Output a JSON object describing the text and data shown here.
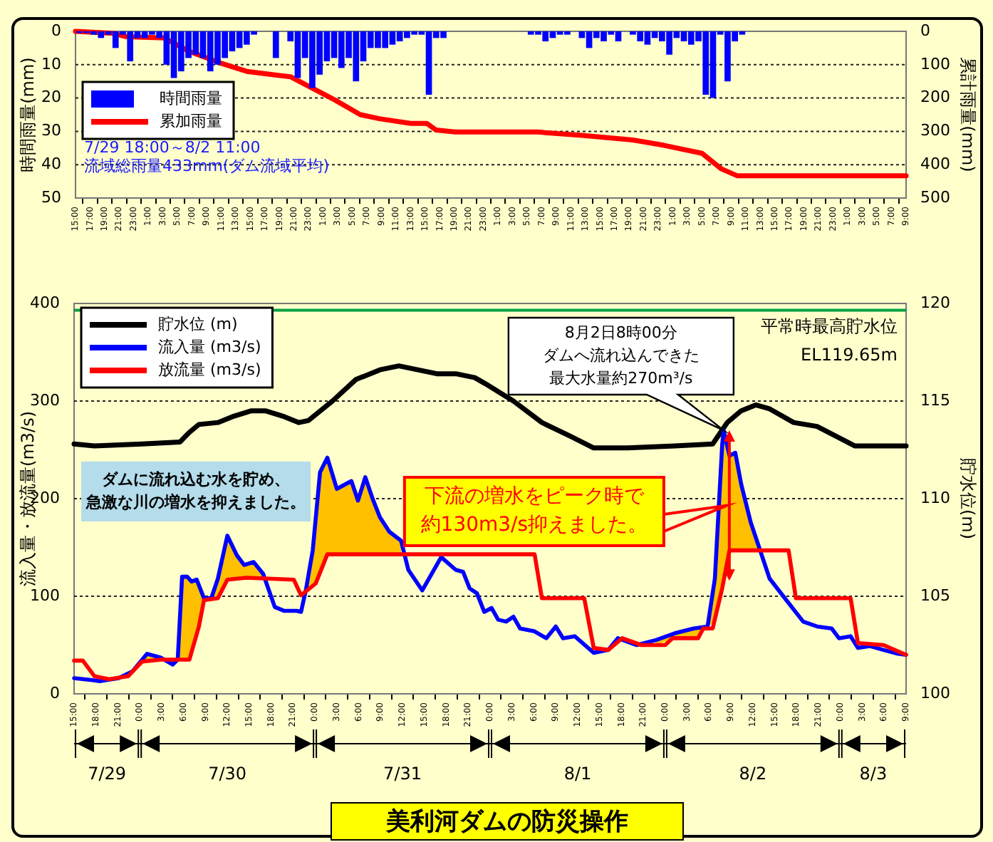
{
  "chart_data": [
    {
      "type": "bar",
      "ylabel": "時間雨量(mm)",
      "y2label": "累計雨量(mm)",
      "xlim": [
        "--07-29T15:00",
        "--08-03T09:00"
      ],
      "xticks": [
        {
          "value": "--07-29T15:00",
          "label": "15:00"
        },
        {
          "value": "--07-29T17:00",
          "label": "17:00"
        },
        {
          "value": "--07-29T19:00",
          "label": "19:00"
        },
        {
          "value": "--07-29T21:00",
          "label": "21:00"
        },
        {
          "value": "--07-29T23:00",
          "label": "23:00"
        },
        {
          "value": "--07-30T01:00",
          "label": "1:00"
        },
        {
          "value": "--07-30T03:00",
          "label": "3:00"
        },
        {
          "value": "--07-30T05:00",
          "label": "5:00"
        },
        {
          "value": "--07-30T07:00",
          "label": "7:00"
        },
        {
          "value": "--07-30T09:00",
          "label": "9:00"
        },
        {
          "value": "--07-30T11:00",
          "label": "11:00"
        },
        {
          "value": "--07-30T13:00",
          "label": "13:00"
        },
        {
          "value": "--07-30T15:00",
          "label": "15:00"
        },
        {
          "value": "--07-30T17:00",
          "label": "17:00"
        },
        {
          "value": "--07-30T19:00",
          "label": "19:00"
        },
        {
          "value": "--07-30T21:00",
          "label": "21:00"
        },
        {
          "value": "--07-30T23:00",
          "label": "23:00"
        },
        {
          "value": "--07-31T01:00",
          "label": "1:00"
        },
        {
          "value": "--07-31T03:00",
          "label": "3:00"
        },
        {
          "value": "--07-31T05:00",
          "label": "5:00"
        },
        {
          "value": "--07-31T07:00",
          "label": "7:00"
        },
        {
          "value": "--07-31T09:00",
          "label": "9:00"
        },
        {
          "value": "--07-31T11:00",
          "label": "11:00"
        },
        {
          "value": "--07-31T13:00",
          "label": "13:00"
        },
        {
          "value": "--07-31T15:00",
          "label": "15:00"
        },
        {
          "value": "--07-31T17:00",
          "label": "17:00"
        },
        {
          "value": "--07-31T19:00",
          "label": "19:00"
        },
        {
          "value": "--07-31T21:00",
          "label": "21:00"
        },
        {
          "value": "--07-31T23:00",
          "label": "23:00"
        },
        {
          "value": "--08-01T01:00",
          "label": "1:00"
        },
        {
          "value": "--08-01T03:00",
          "label": "3:00"
        },
        {
          "value": "--08-01T05:00",
          "label": "5:00"
        },
        {
          "value": "--08-01T07:00",
          "label": "7:00"
        },
        {
          "value": "--08-01T09:00",
          "label": "9:00"
        },
        {
          "value": "--08-01T11:00",
          "label": "11:00"
        },
        {
          "value": "--08-01T13:00",
          "label": "13:00"
        },
        {
          "value": "--08-01T15:00",
          "label": "15:00"
        },
        {
          "value": "--08-01T17:00",
          "label": "17:00"
        },
        {
          "value": "--08-01T19:00",
          "label": "19:00"
        },
        {
          "value": "--08-01T21:00",
          "label": "21:00"
        },
        {
          "value": "--08-01T23:00",
          "label": "23:00"
        },
        {
          "value": "--08-02T01:00",
          "label": "1:00"
        },
        {
          "value": "--08-02T03:00",
          "label": "3:00"
        },
        {
          "value": "--08-02T05:00",
          "label": "5:00"
        },
        {
          "value": "--08-02T07:00",
          "label": "7:00"
        },
        {
          "value": "--08-02T09:00",
          "label": "9:00"
        },
        {
          "value": "--08-02T11:00",
          "label": "11:00"
        },
        {
          "value": "--08-02T13:00",
          "label": "13:00"
        },
        {
          "value": "--08-02T15:00",
          "label": "15:00"
        },
        {
          "value": "--08-02T17:00",
          "label": "17:00"
        },
        {
          "value": "--08-02T19:00",
          "label": "19:00"
        },
        {
          "value": "--08-02T21:00",
          "label": "21:00"
        },
        {
          "value": "--08-02T23:00",
          "label": "23:00"
        },
        {
          "value": "--08-03T01:00",
          "label": "1:00"
        },
        {
          "value": "--08-03T03:00",
          "label": "3:00"
        },
        {
          "value": "--08-03T05:00",
          "label": "5:00"
        },
        {
          "value": "--08-03T07:00",
          "label": "7:00"
        },
        {
          "value": "--08-03T09:00",
          "label": "9:00"
        }
      ],
      "ylim": [
        50,
        0
      ],
      "yticks": [
        0,
        10,
        20,
        30,
        40,
        50
      ],
      "y2lim": [
        500,
        0
      ],
      "y2ticks": [
        0,
        100,
        200,
        300,
        400,
        500
      ],
      "grid": "y",
      "legend": "left",
      "series": [
        {
          "name": "時間雨量",
          "color": "#0000ff",
          "x": [
            "--07-29T15:30",
            "--07-29T16:30",
            "--07-29T17:30",
            "--07-29T18:30",
            "--07-29T19:30",
            "--07-29T20:30",
            "--07-29T21:30",
            "--07-29T22:30",
            "--07-29T23:30",
            "--07-30T00:30",
            "--07-30T01:30",
            "--07-30T02:30",
            "--07-30T03:30",
            "--07-30T04:30",
            "--07-30T05:30",
            "--07-30T06:30",
            "--07-30T07:30",
            "--07-30T08:30",
            "--07-30T09:30",
            "--07-30T10:30",
            "--07-30T11:30",
            "--07-30T12:30",
            "--07-30T13:30",
            "--07-30T14:30",
            "--07-30T15:30",
            "--07-30T16:30",
            "--07-30T17:30",
            "--07-30T18:30",
            "--07-30T19:30",
            "--07-30T20:30",
            "--07-30T21:30",
            "--07-30T22:30",
            "--07-30T23:30",
            "--07-31T00:30",
            "--07-31T01:30",
            "--07-31T02:30",
            "--07-31T03:30",
            "--07-31T04:30",
            "--07-31T05:30",
            "--07-31T06:30",
            "--07-31T07:30",
            "--07-31T08:30",
            "--07-31T09:30",
            "--07-31T10:30",
            "--07-31T11:30",
            "--07-31T12:30",
            "--07-31T13:30",
            "--07-31T14:30",
            "--07-31T15:30",
            "--07-31T16:30",
            "--07-31T17:30",
            "--07-31T18:30",
            "--07-31T19:30",
            "--07-31T20:30",
            "--07-31T21:30",
            "--07-31T22:30",
            "--07-31T23:30",
            "--08-01T00:30",
            "--08-01T01:30",
            "--08-01T02:30",
            "--08-01T03:30",
            "--08-01T04:30",
            "--08-01T05:30",
            "--08-01T06:30",
            "--08-01T07:30",
            "--08-01T08:30",
            "--08-01T09:30",
            "--08-01T10:30",
            "--08-01T11:30",
            "--08-01T12:30",
            "--08-01T13:30",
            "--08-01T14:30",
            "--08-01T15:30",
            "--08-01T16:30",
            "--08-01T17:30",
            "--08-01T18:30",
            "--08-01T19:30",
            "--08-01T20:30",
            "--08-01T21:30",
            "--08-01T22:30",
            "--08-01T23:30",
            "--08-02T00:30",
            "--08-02T01:30",
            "--08-02T02:30",
            "--08-02T03:30",
            "--08-02T04:30",
            "--08-02T05:30",
            "--08-02T06:30",
            "--08-02T07:30",
            "--08-02T08:30",
            "--08-02T09:30",
            "--08-02T10:30"
          ],
          "values": [
            0.5,
            0.5,
            1,
            2,
            1,
            5,
            1,
            9,
            2,
            2,
            1,
            2,
            10,
            14,
            12,
            8,
            7,
            8,
            12,
            10,
            8,
            6,
            5,
            4,
            1,
            0,
            0,
            8,
            0,
            3,
            14,
            8,
            17,
            13,
            9,
            8,
            11,
            8,
            15,
            9,
            5,
            5,
            5,
            4,
            3,
            2,
            1,
            1,
            19,
            2,
            2,
            0,
            0,
            0,
            0,
            0,
            0,
            0,
            0,
            0,
            0,
            0,
            1,
            1,
            3,
            2,
            1,
            1,
            0,
            2,
            5,
            2,
            3,
            1,
            3,
            0,
            1,
            3,
            4,
            2,
            3,
            7,
            2,
            3,
            4,
            3,
            19,
            20,
            1,
            15,
            3,
            1
          ]
        },
        {
          "name": "累加雨量",
          "type": "line",
          "axis": "y2",
          "color": "#ff0000",
          "x": [
            "--07-29T15:00",
            "--07-29T20:12",
            "--07-29T22:00",
            "--07-30T03:12",
            "--07-30T06:36",
            "--07-30T11:00",
            "--07-30T14:30",
            "--07-30T18:48",
            "--07-30T20:30",
            "--07-30T23:06",
            "--07-31T02:36",
            "--07-31T06:06",
            "--07-31T08:42",
            "--07-31T13:00",
            "--07-31T15:12",
            "--07-31T16:30",
            "--07-31T19:06",
            "--08-01T06:24",
            "--08-01T12:30",
            "--08-01T19:30",
            "--08-01T23:48",
            "--08-02T05:00",
            "--08-02T07:36",
            "--08-02T09:48",
            "--08-03T09:00"
          ],
          "values": [
            0,
            6,
            16,
            20,
            60,
            96,
            120,
            132,
            136,
            166,
            206,
            250,
            262,
            276,
            276,
            296,
            302,
            302,
            312,
            326,
            342,
            366,
            412,
            433,
            433
          ]
        }
      ],
      "annotations": [
        "7/29 18:00～8/2 11:00",
        "流域総雨量433mm(ダム流域平均)"
      ]
    },
    {
      "type": "line",
      "title": "美利河ダムの防災操作",
      "ylabel": "流入量・放流量(m3/s)",
      "y2label": "貯水位(m)",
      "xlim": [
        "--07-29T15:00",
        "--08-03T09:00"
      ],
      "xticks": [
        {
          "value": "--07-29T15:00",
          "label": "15:00"
        },
        {
          "value": "--07-29T18:00",
          "label": "18:00"
        },
        {
          "value": "--07-29T21:00",
          "label": "21:00"
        },
        {
          "value": "--07-30T00:00",
          "label": "0:00"
        },
        {
          "value": "--07-30T03:00",
          "label": "3:00"
        },
        {
          "value": "--07-30T06:00",
          "label": "6:00"
        },
        {
          "value": "--07-30T09:00",
          "label": "9:00"
        },
        {
          "value": "--07-30T12:00",
          "label": "12:00"
        },
        {
          "value": "--07-30T15:00",
          "label": "15:00"
        },
        {
          "value": "--07-30T18:00",
          "label": "18:00"
        },
        {
          "value": "--07-30T21:00",
          "label": "21:00"
        },
        {
          "value": "--07-31T00:00",
          "label": "0:00"
        },
        {
          "value": "--07-31T03:00",
          "label": "3:00"
        },
        {
          "value": "--07-31T06:00",
          "label": "6:00"
        },
        {
          "value": "--07-31T09:00",
          "label": "9:00"
        },
        {
          "value": "--07-31T12:00",
          "label": "12:00"
        },
        {
          "value": "--07-31T15:00",
          "label": "15:00"
        },
        {
          "value": "--07-31T18:00",
          "label": "18:00"
        },
        {
          "value": "--07-31T21:00",
          "label": "21:00"
        },
        {
          "value": "--08-01T00:00",
          "label": "0:00"
        },
        {
          "value": "--08-01T03:00",
          "label": "3:00"
        },
        {
          "value": "--08-01T06:00",
          "label": "6:00"
        },
        {
          "value": "--08-01T09:00",
          "label": "9:00"
        },
        {
          "value": "--08-01T12:00",
          "label": "12:00"
        },
        {
          "value": "--08-01T15:00",
          "label": "15:00"
        },
        {
          "value": "--08-01T18:00",
          "label": "18:00"
        },
        {
          "value": "--08-01T21:00",
          "label": "21:00"
        },
        {
          "value": "--08-02T00:00",
          "label": "0:00"
        },
        {
          "value": "--08-02T03:00",
          "label": "3:00"
        },
        {
          "value": "--08-02T06:00",
          "label": "6:00"
        },
        {
          "value": "--08-02T09:00",
          "label": "9:00"
        },
        {
          "value": "--08-02T12:00",
          "label": "12:00"
        },
        {
          "value": "--08-02T15:00",
          "label": "15:00"
        },
        {
          "value": "--08-02T18:00",
          "label": "18:00"
        },
        {
          "value": "--08-02T21:00",
          "label": "21:00"
        },
        {
          "value": "--08-03T00:00",
          "label": "0:00"
        },
        {
          "value": "--08-03T03:00",
          "label": "3:00"
        },
        {
          "value": "--08-03T06:00",
          "label": "6:00"
        },
        {
          "value": "--08-03T09:00",
          "label": "9:00"
        }
      ],
      "ylim": [
        0,
        400
      ],
      "yticks": [
        0,
        100,
        200,
        300,
        400
      ],
      "y2lim": [
        100,
        120
      ],
      "y2ticks": [
        100,
        105,
        110,
        115,
        120
      ],
      "grid": "y",
      "legend": "top left",
      "series": [
        {
          "name": "貯水位 (m)",
          "axis": "y2",
          "color": "#000000",
          "x": [
            "--07-29T15:00",
            "--07-29T17:48",
            "--07-30T00:18",
            "--07-30T05:30",
            "--07-30T06:48",
            "--07-30T08:06",
            "--07-30T10:42",
            "--07-30T12:42",
            "--07-30T15:18",
            "--07-30T17:12",
            "--07-30T19:48",
            "--07-30T21:48",
            "--07-30T23:06",
            "--07-31T02:24",
            "--07-31T05:36",
            "--07-31T08:54",
            "--07-31T11:30",
            "--07-31T14:06",
            "--07-31T16:42",
            "--07-31T19:18",
            "--07-31T21:54",
            "--07-31T23:18",
            "--08-01T03:12",
            "--08-01T07:06",
            "--08-01T11:00",
            "--08-01T14:12",
            "--08-01T18:48",
            "--08-02T01:18",
            "--08-02T06:30",
            "--08-02T08:30",
            "--08-02T10:24",
            "--08-02T12:24",
            "--08-02T14:18",
            "--08-02T17:36",
            "--08-02T20:48",
            "--08-02T23:24",
            "--08-03T02:00",
            "--08-03T09:00"
          ],
          "values": [
            112.8,
            112.7,
            112.8,
            112.9,
            113.4,
            113.8,
            113.9,
            114.2,
            114.5,
            114.5,
            114.2,
            113.9,
            114.0,
            115.0,
            116.1,
            116.6,
            116.8,
            116.6,
            116.4,
            116.4,
            116.2,
            115.9,
            115.0,
            113.9,
            113.2,
            112.6,
            112.6,
            112.7,
            112.8,
            113.9,
            114.5,
            114.8,
            114.6,
            113.9,
            113.7,
            113.2,
            112.7,
            112.7
          ]
        },
        {
          "name": "流入量 (m3/s)",
          "color": "#0000ff",
          "x": [
            "--07-29T15:00",
            "--07-29T17:30",
            "--07-29T18:30",
            "--07-29T21:06",
            "--07-29T23:00",
            "--07-30T01:00",
            "--07-30T02:54",
            "--07-30T04:30",
            "--07-30T05:12",
            "--07-30T05:48",
            "--07-30T06:30",
            "--07-30T07:06",
            "--07-30T07:48",
            "--07-30T08:48",
            "--07-30T09:48",
            "--07-30T10:42",
            "--07-30T12:00",
            "--07-30T13:18",
            "--07-30T14:18",
            "--07-30T15:36",
            "--07-30T16:54",
            "--07-30T18:30",
            "--07-30T19:48",
            "--07-30T21:30",
            "--07-30T22:06",
            "--07-30T22:48",
            "--07-30T23:42",
            "--07-31T00:42",
            "--07-31T01:42",
            "--07-31T03:00",
            "--07-31T05:00",
            "--07-31T05:54",
            "--07-31T06:54",
            "--07-31T07:54",
            "--07-31T08:54",
            "--07-31T10:12",
            "--07-31T11:48",
            "--07-31T12:48",
            "--07-31T14:42",
            "--07-31T17:18",
            "--07-31T19:18",
            "--07-31T20:18",
            "--07-31T21:12",
            "--07-31T22:12",
            "--07-31T23:12",
            "--08-01T00:12",
            "--08-01T01:06",
            "--08-01T02:12",
            "--08-01T03:12",
            "--08-01T04:06",
            "--08-01T06:06",
            "--08-01T07:42",
            "--08-01T09:00",
            "--08-01T10:00",
            "--08-01T11:36",
            "--08-01T14:12",
            "--08-01T16:12",
            "--08-01T17:30",
            "--08-01T20:06",
            "--08-01T22:42",
            "--08-02T01:18",
            "--08-02T03:54",
            "--08-02T05:48",
            "--08-02T06:48",
            "--08-02T07:48",
            "--08-02T08:00",
            "--08-02T08:48",
            "--08-02T09:36",
            "--08-02T10:24",
            "--08-02T11:42",
            "--08-02T13:00",
            "--08-02T14:18",
            "--08-02T16:54",
            "--08-02T18:54",
            "--08-02T20:48",
            "--08-02T22:48",
            "--08-02T23:48",
            "--08-03T01:24",
            "--08-03T02:24",
            "--08-03T04:00",
            "--08-03T05:54",
            "--08-03T07:54",
            "--08-03T09:00"
          ],
          "values": [
            16,
            14,
            13,
            16,
            23,
            41,
            37,
            30,
            35,
            120,
            120,
            115,
            117,
            98,
            98,
            118,
            162,
            142,
            132,
            135,
            123,
            89,
            85,
            85,
            84,
            108,
            147,
            227,
            242,
            210,
            218,
            198,
            222,
            200,
            181,
            166,
            157,
            127,
            106,
            140,
            127,
            125,
            108,
            103,
            84,
            88,
            76,
            74,
            79,
            67,
            64,
            57,
            69,
            57,
            59,
            42,
            45,
            57,
            50,
            55,
            62,
            67,
            69,
            118,
            255,
            270,
            244,
            247,
            215,
            176,
            147,
            118,
            93,
            74,
            69,
            67,
            57,
            59,
            47,
            49,
            45,
            41,
            40
          ],
          "lower": [
            null,
            null,
            null,
            null,
            22.7,
            33.5,
            35,
            null,
            35,
            35,
            35,
            42.8,
            61.2,
            96,
            97.1,
            98,
            117,
            118,
            118.8,
            118.7,
            118.3,
            null,
            null,
            null,
            null,
            105.2,
            110.6,
            124.3,
            143,
            143,
            143,
            143,
            143,
            143,
            143,
            143,
            143,
            null,
            null,
            null,
            null,
            null,
            null,
            null,
            null,
            null,
            null,
            null,
            null,
            null,
            null,
            null,
            null,
            null,
            null,
            null,
            45,
            53.2,
            null,
            50,
            57,
            57,
            67,
            76.5,
            108,
            115.8,
            147,
            147,
            147,
            147,
            147,
            null,
            null,
            null,
            null,
            null,
            null,
            null,
            null,
            null,
            null,
            null,
            null
          ],
          "upper": [
            null,
            null,
            null,
            null,
            23,
            41,
            37,
            null,
            35,
            120,
            120,
            115,
            117,
            98,
            98,
            118,
            162,
            142,
            132,
            135,
            123,
            null,
            null,
            null,
            null,
            108,
            147,
            227,
            242,
            210,
            218,
            198,
            222,
            200,
            181,
            166,
            157,
            null,
            null,
            null,
            null,
            null,
            null,
            null,
            null,
            null,
            null,
            null,
            null,
            null,
            null,
            null,
            null,
            null,
            null,
            null,
            45,
            57,
            null,
            55,
            62,
            67,
            69,
            118,
            255,
            270,
            244,
            247,
            215,
            176,
            147,
            null,
            null,
            null,
            null,
            null,
            null,
            null,
            null,
            null,
            null,
            null,
            null
          ]
        },
        {
          "name": "放流量 (m3/s)",
          "color": "#ff0000",
          "x": [
            "--07-29T15:00",
            "--07-29T16:12",
            "--07-29T17:48",
            "--07-29T19:48",
            "--07-29T22:24",
            "--07-30T00:18",
            "--07-30T02:54",
            "--07-30T06:48",
            "--07-30T08:06",
            "--07-30T08:48",
            "--07-30T10:42",
            "--07-30T12:00",
            "--07-30T14:36",
            "--07-30T21:06",
            "--07-30T22:06",
            "--07-31T00:06",
            "--07-31T01:42",
            "--08-01T06:06",
            "--08-01T07:06",
            "--08-01T12:54",
            "--08-01T14:12",
            "--08-01T16:12",
            "--08-01T18:06",
            "--08-01T20:42",
            "--08-02T00:00",
            "--08-02T01:00",
            "--08-02T04:30",
            "--08-02T05:12",
            "--08-02T06:30",
            "--08-02T07:48",
            "--08-02T08:48",
            "--08-02T16:54",
            "--08-02T17:54",
            "--08-03T01:24",
            "--08-03T02:24",
            "--08-03T05:54",
            "--08-03T09:00"
          ],
          "values": [
            34,
            34,
            18,
            15,
            18,
            33,
            35,
            35,
            69,
            96,
            98,
            117,
            119,
            117,
            101,
            113,
            143,
            143,
            98,
            98,
            47,
            45,
            57,
            50,
            50,
            57,
            57,
            67,
            67,
            108,
            147,
            147,
            98,
            98,
            52,
            50,
            40
          ]
        }
      ],
      "ref_lines": [
        {
          "axis": "y2",
          "value": 119.65,
          "label": "平常時最高貯水位\nEL119.65m",
          "color": "#00a040"
        }
      ],
      "annotations": [
        "ダムに流れ込む水を貯め、急激な川の増水を抑えました。",
        "8月2日8時00分ダムへ流れ込んできた最大水量約270m³/s",
        "下流の増水をピーク時で約130m3/s抑えました。",
        "7/29",
        "7/30",
        "7/31",
        "8/1",
        "8/2",
        "8/3"
      ]
    }
  ]
}
